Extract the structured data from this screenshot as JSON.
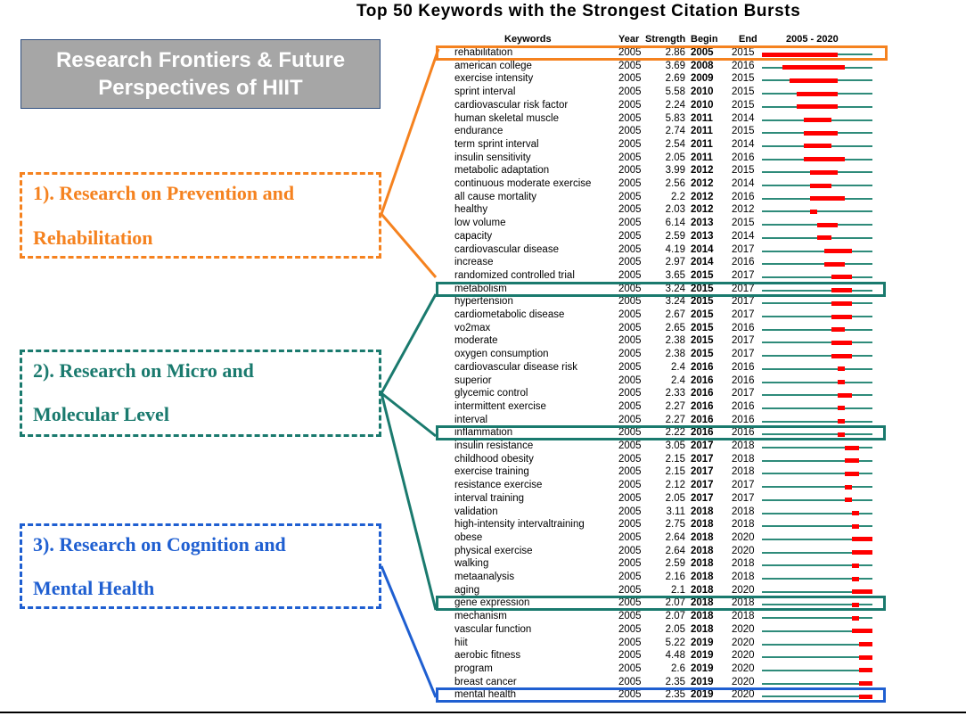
{
  "title": "Top 50 Keywords with the Strongest Citation Bursts",
  "header_box": {
    "line1": "Research Frontiers & Future",
    "line2": "Perspectives of HIIT"
  },
  "sections": [
    {
      "line1": "1). Research on Prevention and",
      "line2": "Rehabilitation",
      "color": "#f5821f"
    },
    {
      "line1": "2).  Research  on  Micro  and",
      "line2": "Molecular Level",
      "color": "#1a7a6e"
    },
    {
      "line1": "3). Research on Cognition and",
      "line2": "Mental Health",
      "color": "#1f5fd1"
    }
  ],
  "columns": {
    "keywords": "Keywords",
    "year": "Year",
    "strength": "Strength",
    "begin": "Begin",
    "end": "End",
    "range": "2005 - 2020"
  },
  "colors": {
    "burst": "#ff0000",
    "baseline": "#2e8b7a",
    "orange": "#f5821f",
    "teal": "#1a7a6e",
    "blue": "#1f5fd1"
  },
  "chart_data": {
    "type": "table",
    "title": "Top 50 Keywords with the Strongest Citation Bursts",
    "range": [
      2005,
      2020
    ],
    "rows": [
      {
        "keyword": "rehabilitation",
        "year": 2005,
        "strength": "2.86",
        "begin": 2005,
        "end": 2015
      },
      {
        "keyword": "american college",
        "year": 2005,
        "strength": "3.69",
        "begin": 2008,
        "end": 2016
      },
      {
        "keyword": "exercise intensity",
        "year": 2005,
        "strength": "2.69",
        "begin": 2009,
        "end": 2015
      },
      {
        "keyword": "sprint interval",
        "year": 2005,
        "strength": "5.58",
        "begin": 2010,
        "end": 2015
      },
      {
        "keyword": "cardiovascular risk factor",
        "year": 2005,
        "strength": "2.24",
        "begin": 2010,
        "end": 2015
      },
      {
        "keyword": "human skeletal muscle",
        "year": 2005,
        "strength": "5.83",
        "begin": 2011,
        "end": 2014
      },
      {
        "keyword": "endurance",
        "year": 2005,
        "strength": "2.74",
        "begin": 2011,
        "end": 2015
      },
      {
        "keyword": "term sprint interval",
        "year": 2005,
        "strength": "2.54",
        "begin": 2011,
        "end": 2014
      },
      {
        "keyword": "insulin sensitivity",
        "year": 2005,
        "strength": "2.05",
        "begin": 2011,
        "end": 2016
      },
      {
        "keyword": "metabolic adaptation",
        "year": 2005,
        "strength": "3.99",
        "begin": 2012,
        "end": 2015
      },
      {
        "keyword": "continuous moderate exercise",
        "year": 2005,
        "strength": "2.56",
        "begin": 2012,
        "end": 2014
      },
      {
        "keyword": "all cause mortality",
        "year": 2005,
        "strength": "2.2",
        "begin": 2012,
        "end": 2016
      },
      {
        "keyword": "healthy",
        "year": 2005,
        "strength": "2.03",
        "begin": 2012,
        "end": 2012
      },
      {
        "keyword": "low volume",
        "year": 2005,
        "strength": "6.14",
        "begin": 2013,
        "end": 2015
      },
      {
        "keyword": "capacity",
        "year": 2005,
        "strength": "2.59",
        "begin": 2013,
        "end": 2014
      },
      {
        "keyword": "cardiovascular disease",
        "year": 2005,
        "strength": "4.19",
        "begin": 2014,
        "end": 2017
      },
      {
        "keyword": "increase",
        "year": 2005,
        "strength": "2.97",
        "begin": 2014,
        "end": 2016
      },
      {
        "keyword": "randomized controlled trial",
        "year": 2005,
        "strength": "3.65",
        "begin": 2015,
        "end": 2017
      },
      {
        "keyword": "metabolism",
        "year": 2005,
        "strength": "3.24",
        "begin": 2015,
        "end": 2017
      },
      {
        "keyword": "hypertension",
        "year": 2005,
        "strength": "3.24",
        "begin": 2015,
        "end": 2017
      },
      {
        "keyword": "cardiometabolic disease",
        "year": 2005,
        "strength": "2.67",
        "begin": 2015,
        "end": 2017
      },
      {
        "keyword": "vo2max",
        "year": 2005,
        "strength": "2.65",
        "begin": 2015,
        "end": 2016
      },
      {
        "keyword": "moderate",
        "year": 2005,
        "strength": "2.38",
        "begin": 2015,
        "end": 2017
      },
      {
        "keyword": "oxygen consumption",
        "year": 2005,
        "strength": "2.38",
        "begin": 2015,
        "end": 2017
      },
      {
        "keyword": "cardiovascular disease risk",
        "year": 2005,
        "strength": "2.4",
        "begin": 2016,
        "end": 2016
      },
      {
        "keyword": "superior",
        "year": 2005,
        "strength": "2.4",
        "begin": 2016,
        "end": 2016
      },
      {
        "keyword": "glycemic control",
        "year": 2005,
        "strength": "2.33",
        "begin": 2016,
        "end": 2017
      },
      {
        "keyword": "intermittent exercise",
        "year": 2005,
        "strength": "2.27",
        "begin": 2016,
        "end": 2016
      },
      {
        "keyword": "interval",
        "year": 2005,
        "strength": "2.27",
        "begin": 2016,
        "end": 2016
      },
      {
        "keyword": "inflammation",
        "year": 2005,
        "strength": "2.22",
        "begin": 2016,
        "end": 2016
      },
      {
        "keyword": "insulin resistance",
        "year": 2005,
        "strength": "3.05",
        "begin": 2017,
        "end": 2018
      },
      {
        "keyword": "childhood obesity",
        "year": 2005,
        "strength": "2.15",
        "begin": 2017,
        "end": 2018
      },
      {
        "keyword": "exercise training",
        "year": 2005,
        "strength": "2.15",
        "begin": 2017,
        "end": 2018
      },
      {
        "keyword": "resistance exercise",
        "year": 2005,
        "strength": "2.12",
        "begin": 2017,
        "end": 2017
      },
      {
        "keyword": "interval training",
        "year": 2005,
        "strength": "2.05",
        "begin": 2017,
        "end": 2017
      },
      {
        "keyword": "validation",
        "year": 2005,
        "strength": "3.11",
        "begin": 2018,
        "end": 2018
      },
      {
        "keyword": "high-intensity intervaltraining",
        "year": 2005,
        "strength": "2.75",
        "begin": 2018,
        "end": 2018
      },
      {
        "keyword": "obese",
        "year": 2005,
        "strength": "2.64",
        "begin": 2018,
        "end": 2020
      },
      {
        "keyword": "physical exercise",
        "year": 2005,
        "strength": "2.64",
        "begin": 2018,
        "end": 2020
      },
      {
        "keyword": "walking",
        "year": 2005,
        "strength": "2.59",
        "begin": 2018,
        "end": 2018
      },
      {
        "keyword": "metaanalysis",
        "year": 2005,
        "strength": "2.16",
        "begin": 2018,
        "end": 2018
      },
      {
        "keyword": "aging",
        "year": 2005,
        "strength": "2.1",
        "begin": 2018,
        "end": 2020
      },
      {
        "keyword": "gene expression",
        "year": 2005,
        "strength": "2.07",
        "begin": 2018,
        "end": 2018
      },
      {
        "keyword": "mechanism",
        "year": 2005,
        "strength": "2.07",
        "begin": 2018,
        "end": 2018
      },
      {
        "keyword": "vascular function",
        "year": 2005,
        "strength": "2.05",
        "begin": 2018,
        "end": 2020
      },
      {
        "keyword": "hiit",
        "year": 2005,
        "strength": "5.22",
        "begin": 2019,
        "end": 2020
      },
      {
        "keyword": "aerobic fitness",
        "year": 2005,
        "strength": "4.48",
        "begin": 2019,
        "end": 2020
      },
      {
        "keyword": "program",
        "year": 2005,
        "strength": "2.6",
        "begin": 2019,
        "end": 2020
      },
      {
        "keyword": "breast cancer",
        "year": 2005,
        "strength": "2.35",
        "begin": 2019,
        "end": 2020
      },
      {
        "keyword": "mental health",
        "year": 2005,
        "strength": "2.35",
        "begin": 2019,
        "end": 2020
      }
    ]
  },
  "highlights": [
    {
      "row": 0,
      "color": "#f5821f"
    },
    {
      "row": 18,
      "color": "#1a7a6e"
    },
    {
      "row": 29,
      "color": "#1a7a6e"
    },
    {
      "row": 42,
      "color": "#1a7a6e"
    },
    {
      "row": 49,
      "color": "#1f5fd1"
    }
  ]
}
